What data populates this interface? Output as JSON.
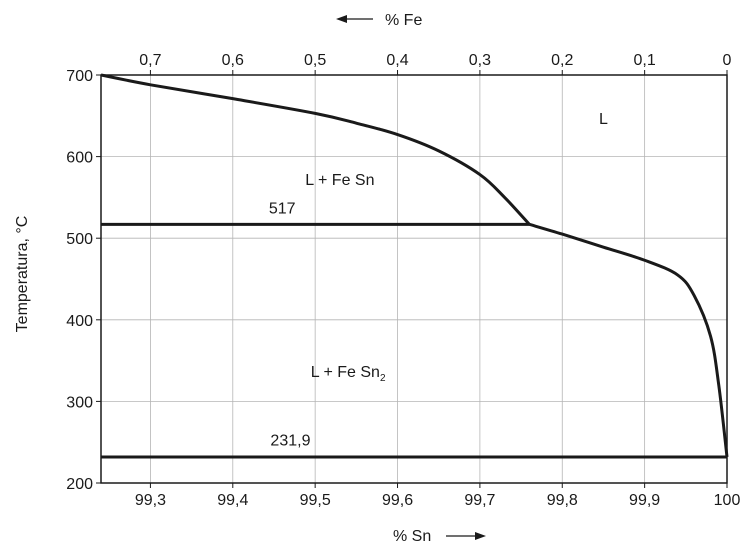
{
  "chart_data": {
    "type": "line",
    "title": "",
    "xlabel": "% Sn",
    "x2label": "% Fe",
    "ylabel": "Temperatura, °C",
    "xlim": [
      99.24,
      100
    ],
    "ylim": [
      200,
      700
    ],
    "x_ticks": [
      99.3,
      99.4,
      99.5,
      99.6,
      99.7,
      99.8,
      99.9,
      100
    ],
    "x_tick_labels": [
      "99,3",
      "99,4",
      "99,5",
      "99,6",
      "99,7",
      "99,8",
      "99,9",
      "100"
    ],
    "x2_ticks": [
      0.7,
      0.6,
      0.5,
      0.4,
      0.3,
      0.2,
      0.1,
      0
    ],
    "x2_tick_labels": [
      "0,7",
      "0,6",
      "0,5",
      "0,4",
      "0,3",
      "0,2",
      "0,1",
      "0"
    ],
    "y_ticks": [
      200,
      300,
      400,
      500,
      600,
      700
    ],
    "y_tick_labels": [
      "200",
      "300",
      "400",
      "500",
      "600",
      "700"
    ],
    "grid": true,
    "series": [
      {
        "x": [
          99.24,
          99.3,
          99.4,
          99.5,
          99.55,
          99.6,
          99.65,
          99.7,
          99.73,
          99.76
        ],
        "y": [
          700,
          688,
          671,
          653,
          641,
          627,
          607,
          578,
          550,
          517
        ]
      },
      {
        "x": [
          99.76,
          99.8,
          99.85,
          99.9,
          99.94,
          99.96,
          99.98,
          99.99,
          100
        ],
        "y": [
          517,
          505,
          489,
          473,
          455,
          430,
          380,
          320,
          231.9
        ]
      },
      {
        "x": [
          99.24,
          99.76
        ],
        "y": [
          517,
          517
        ]
      },
      {
        "x": [
          99.24,
          100
        ],
        "y": [
          231.9,
          231.9
        ]
      }
    ],
    "annotations": [
      {
        "text": "L",
        "x": 99.85,
        "y": 640
      },
      {
        "text": "L + Fe Sn",
        "x": 99.53,
        "y": 565
      },
      {
        "text": "517",
        "x": 99.46,
        "y": 530
      },
      {
        "text": "L + Fe Sn",
        "subscript": "2",
        "x": 99.54,
        "y": 330
      },
      {
        "text": "231,9",
        "x": 99.47,
        "y": 246
      }
    ]
  }
}
